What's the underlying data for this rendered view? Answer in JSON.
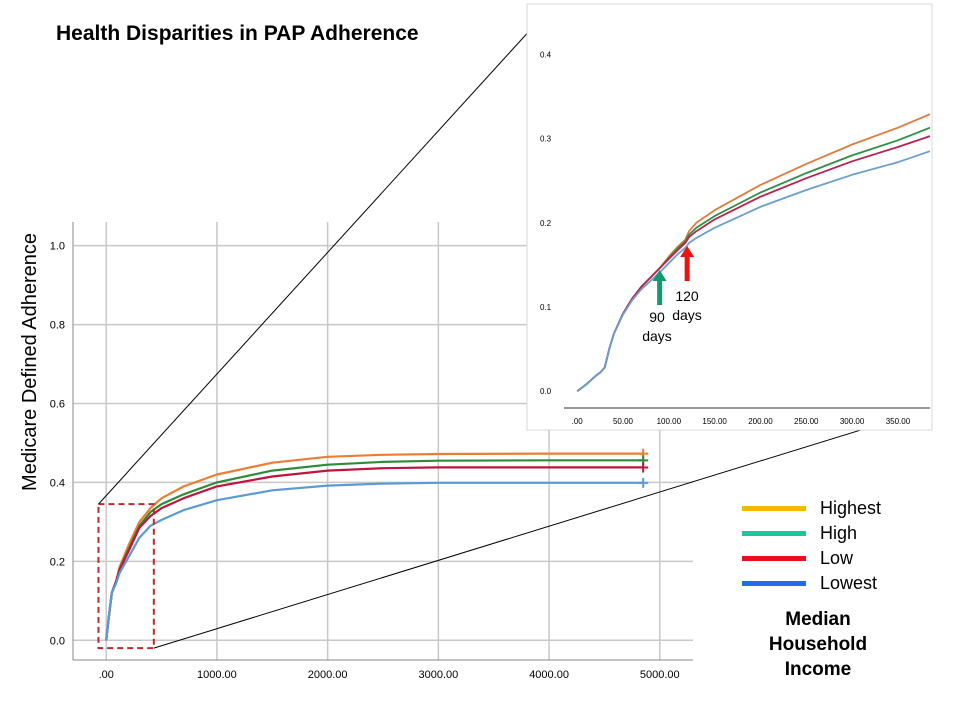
{
  "title": "Health Disparities in PAP Adherence",
  "legend": {
    "title_lines": [
      "Median",
      "Household",
      "Income"
    ],
    "items": [
      {
        "label": "Highest",
        "color": "#f5b800"
      },
      {
        "label": "High",
        "color": "#1ec79b"
      },
      {
        "label": "Low",
        "color": "#e8101c"
      },
      {
        "label": "Lowest",
        "color": "#1e6ee8"
      }
    ]
  },
  "annotations": {
    "ninety": {
      "lines": [
        "90",
        "days"
      ],
      "arrow_color": "#0f9a73",
      "x_value": 90
    },
    "onetwenty": {
      "lines": [
        "120",
        "days"
      ],
      "arrow_color": "#ee1111",
      "x_value": 120
    }
  },
  "chart_data": [
    {
      "id": "main",
      "type": "line",
      "title": "",
      "xlabel": "",
      "ylabel": "Medicare Defined Adherence",
      "xlim": [
        -300,
        5300
      ],
      "ylim": [
        -0.05,
        1.06
      ],
      "xticks": [
        0,
        1000,
        2000,
        3000,
        4000,
        5000
      ],
      "xtick_labels": [
        ".00",
        "1000.00",
        "2000.00",
        "3000.00",
        "4000.00",
        "5000.00"
      ],
      "yticks": [
        0,
        0.2,
        0.4,
        0.6,
        0.8,
        1.0
      ],
      "ytick_labels": [
        "0.0",
        "0.2",
        "0.4",
        "0.6",
        "0.8",
        "1.0"
      ],
      "grid": true,
      "censor_x": 4850,
      "series": [
        {
          "name": "Orange",
          "color": "#ed7d31",
          "x": [
            0,
            20,
            50,
            90,
            120,
            200,
            300,
            400,
            500,
            700,
            1000,
            1500,
            2000,
            2500,
            3000,
            4000,
            4850
          ],
          "y": [
            0,
            0.05,
            0.12,
            0.15,
            0.185,
            0.24,
            0.3,
            0.335,
            0.36,
            0.39,
            0.42,
            0.45,
            0.465,
            0.47,
            0.472,
            0.473,
            0.473
          ]
        },
        {
          "name": "Green",
          "color": "#2e8b3a",
          "x": [
            0,
            20,
            50,
            90,
            120,
            200,
            300,
            400,
            500,
            700,
            1000,
            1500,
            2000,
            2500,
            3000,
            4000,
            4850
          ],
          "y": [
            0,
            0.05,
            0.12,
            0.15,
            0.18,
            0.23,
            0.29,
            0.325,
            0.345,
            0.37,
            0.4,
            0.43,
            0.445,
            0.452,
            0.455,
            0.456,
            0.456
          ]
        },
        {
          "name": "Crimson",
          "color": "#c0143c",
          "x": [
            0,
            20,
            50,
            90,
            120,
            200,
            300,
            400,
            500,
            700,
            1000,
            1500,
            2000,
            2500,
            3000,
            4000,
            4850
          ],
          "y": [
            0,
            0.05,
            0.12,
            0.15,
            0.178,
            0.225,
            0.285,
            0.315,
            0.335,
            0.36,
            0.39,
            0.415,
            0.43,
            0.436,
            0.438,
            0.438,
            0.438
          ]
        },
        {
          "name": "Blue",
          "color": "#5b9bd5",
          "x": [
            0,
            20,
            50,
            90,
            120,
            200,
            300,
            400,
            500,
            700,
            1000,
            1500,
            2000,
            2500,
            3000,
            4000,
            4850
          ],
          "y": [
            0,
            0.05,
            0.12,
            0.145,
            0.17,
            0.21,
            0.26,
            0.29,
            0.305,
            0.33,
            0.355,
            0.38,
            0.392,
            0.397,
            0.399,
            0.399,
            0.399
          ]
        }
      ],
      "highlight_box": {
        "x": [
          -70,
          430
        ],
        "y": [
          -0.02,
          0.345
        ]
      }
    },
    {
      "id": "inset",
      "type": "line",
      "title": "",
      "xlabel": "",
      "ylabel": "",
      "xlim": [
        -10,
        385
      ],
      "ylim": [
        -0.02,
        0.41
      ],
      "xticks": [
        0,
        50,
        100,
        150,
        200,
        250,
        300,
        350
      ],
      "xtick_labels": [
        ".00",
        "50.00",
        "100.00",
        "150.00",
        "200.00",
        "250.00",
        "300.00",
        "350.00"
      ],
      "yticks": [
        0,
        0.1,
        0.2,
        0.3,
        0.4
      ],
      "ytick_labels": [
        "0.0",
        "0.1",
        "0.2",
        "0.3",
        "0.4"
      ],
      "grid": false,
      "series": [
        {
          "name": "Orange",
          "color": "#e07b3c",
          "x": [
            0,
            10,
            20,
            25,
            30,
            35,
            40,
            50,
            60,
            70,
            80,
            90,
            100,
            110,
            118,
            122,
            130,
            150,
            200,
            250,
            300,
            350,
            385
          ],
          "y": [
            0,
            0.008,
            0.018,
            0.022,
            0.028,
            0.05,
            0.068,
            0.092,
            0.11,
            0.124,
            0.135,
            0.146,
            0.16,
            0.172,
            0.18,
            0.19,
            0.2,
            0.215,
            0.245,
            0.27,
            0.293,
            0.313,
            0.329
          ]
        },
        {
          "name": "Green",
          "color": "#2f8f45",
          "x": [
            0,
            10,
            20,
            25,
            30,
            35,
            40,
            50,
            60,
            70,
            80,
            90,
            100,
            110,
            118,
            122,
            130,
            150,
            200,
            250,
            300,
            350,
            385
          ],
          "y": [
            0,
            0.008,
            0.018,
            0.022,
            0.028,
            0.05,
            0.068,
            0.092,
            0.11,
            0.124,
            0.135,
            0.146,
            0.158,
            0.17,
            0.178,
            0.186,
            0.194,
            0.208,
            0.236,
            0.259,
            0.28,
            0.298,
            0.313
          ]
        },
        {
          "name": "Crimson",
          "color": "#b8234c",
          "x": [
            0,
            10,
            20,
            25,
            30,
            35,
            40,
            50,
            60,
            70,
            80,
            90,
            100,
            110,
            118,
            122,
            130,
            150,
            200,
            250,
            300,
            350,
            385
          ],
          "y": [
            0,
            0.008,
            0.018,
            0.022,
            0.028,
            0.05,
            0.068,
            0.092,
            0.11,
            0.124,
            0.135,
            0.146,
            0.157,
            0.168,
            0.176,
            0.183,
            0.19,
            0.204,
            0.231,
            0.253,
            0.273,
            0.29,
            0.303
          ]
        },
        {
          "name": "Blue",
          "color": "#6a9fd0",
          "x": [
            0,
            10,
            20,
            25,
            30,
            35,
            40,
            50,
            60,
            70,
            80,
            90,
            100,
            110,
            118,
            122,
            130,
            150,
            200,
            250,
            300,
            350,
            385
          ],
          "y": [
            0,
            0.008,
            0.018,
            0.022,
            0.028,
            0.05,
            0.068,
            0.091,
            0.108,
            0.121,
            0.131,
            0.141,
            0.152,
            0.163,
            0.17,
            0.176,
            0.182,
            0.194,
            0.219,
            0.239,
            0.257,
            0.272,
            0.285
          ]
        }
      ]
    }
  ]
}
